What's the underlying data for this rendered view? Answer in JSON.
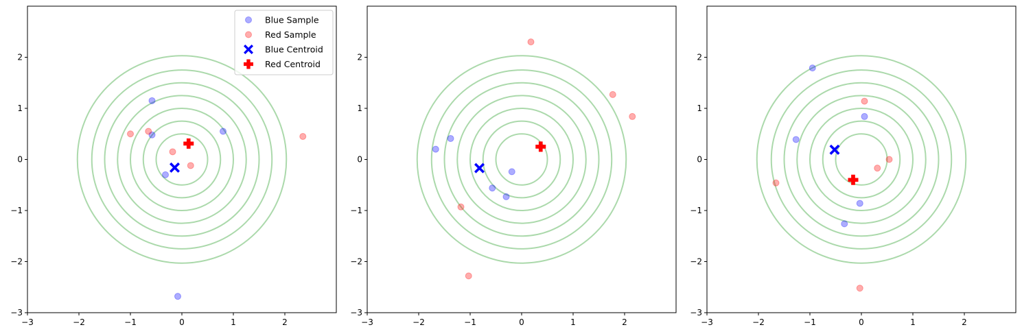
{
  "chart_data": [
    {
      "type": "scatter",
      "xlim": [
        -3,
        3
      ],
      "ylim": [
        -3,
        3
      ],
      "xticks": [
        -3,
        -2,
        -1,
        0,
        1,
        2
      ],
      "yticks": [
        -3,
        -2,
        -1,
        0,
        1,
        2
      ],
      "xtick_labels": [
        "−3",
        "−2",
        "−1",
        "0",
        "1",
        "2"
      ],
      "ytick_labels": [
        "−3",
        "−2",
        "−1",
        "0",
        "1",
        "2"
      ],
      "grid": false,
      "contour_radii": [
        0.5,
        0.75,
        1.0,
        1.25,
        1.5,
        1.75,
        2.03
      ],
      "legend": {
        "placement": "upper right",
        "entries": [
          "Blue Sample",
          "Red Sample",
          "Blue Centroid",
          "Red Centroid"
        ]
      },
      "series": [
        {
          "name": "Blue Sample",
          "kind": "sample",
          "color": "#0000ff",
          "points": [
            [
              -0.58,
              1.15
            ],
            [
              -0.58,
              0.48
            ],
            [
              0.8,
              0.55
            ],
            [
              -0.32,
              -0.3
            ],
            [
              -0.08,
              -2.68
            ]
          ]
        },
        {
          "name": "Red Sample",
          "kind": "sample",
          "color": "#ff0000",
          "points": [
            [
              -1.0,
              0.5
            ],
            [
              -0.65,
              0.55
            ],
            [
              -0.18,
              0.15
            ],
            [
              0.17,
              -0.12
            ],
            [
              2.35,
              0.45
            ]
          ]
        },
        {
          "name": "Blue Centroid",
          "kind": "centroid",
          "color": "#0000ff",
          "marker": "x",
          "points": [
            [
              -0.14,
              -0.16
            ]
          ]
        },
        {
          "name": "Red Centroid",
          "kind": "centroid",
          "color": "#ff0000",
          "marker": "plus",
          "points": [
            [
              0.13,
              0.31
            ]
          ]
        }
      ]
    },
    {
      "type": "scatter",
      "xlim": [
        -3,
        3
      ],
      "ylim": [
        -3,
        3
      ],
      "xticks": [
        -3,
        -2,
        -1,
        0,
        1,
        2
      ],
      "yticks": [
        -3,
        -2,
        -1,
        0,
        1,
        2
      ],
      "xtick_labels": [
        "−3",
        "−2",
        "−1",
        "0",
        "1",
        "2"
      ],
      "ytick_labels": [
        "−3",
        "−2",
        "−1",
        "0",
        "1",
        "2"
      ],
      "grid": false,
      "contour_radii": [
        0.5,
        0.75,
        1.0,
        1.25,
        1.5,
        1.75,
        2.03
      ],
      "series": [
        {
          "kind": "sample",
          "color": "#0000ff",
          "points": [
            [
              -1.67,
              0.2
            ],
            [
              -1.38,
              0.41
            ],
            [
              -0.19,
              -0.24
            ],
            [
              -0.57,
              -0.56
            ],
            [
              -0.3,
              -0.73
            ]
          ]
        },
        {
          "kind": "sample",
          "color": "#ff0000",
          "points": [
            [
              0.18,
              2.3
            ],
            [
              1.77,
              1.27
            ],
            [
              2.15,
              0.84
            ],
            [
              -1.18,
              -0.93
            ],
            [
              -1.03,
              -2.28
            ]
          ]
        },
        {
          "kind": "centroid",
          "color": "#0000ff",
          "marker": "x",
          "points": [
            [
              -0.82,
              -0.17
            ]
          ]
        },
        {
          "kind": "centroid",
          "color": "#ff0000",
          "marker": "plus",
          "points": [
            [
              0.37,
              0.25
            ]
          ]
        }
      ]
    },
    {
      "type": "scatter",
      "xlim": [
        -3,
        3
      ],
      "ylim": [
        -3,
        3
      ],
      "xticks": [
        -3,
        -2,
        -1,
        0,
        1,
        2
      ],
      "yticks": [
        -3,
        -2,
        -1,
        0,
        1,
        2
      ],
      "xtick_labels": [
        "−3",
        "−2",
        "−1",
        "0",
        "1",
        "2"
      ],
      "ytick_labels": [
        "−3",
        "−2",
        "−1",
        "0",
        "1",
        "2"
      ],
      "grid": false,
      "contour_radii": [
        0.5,
        0.75,
        1.0,
        1.25,
        1.5,
        1.75,
        2.03
      ],
      "series": [
        {
          "kind": "sample",
          "color": "#0000ff",
          "points": [
            [
              -0.95,
              1.79
            ],
            [
              -1.27,
              0.39
            ],
            [
              0.06,
              0.84
            ],
            [
              -0.03,
              -0.86
            ],
            [
              -0.33,
              -1.26
            ]
          ]
        },
        {
          "kind": "sample",
          "color": "#ff0000",
          "points": [
            [
              0.06,
              1.14
            ],
            [
              0.54,
              0.0
            ],
            [
              0.31,
              -0.17
            ],
            [
              -1.66,
              -0.46
            ],
            [
              -0.03,
              -2.52
            ]
          ]
        },
        {
          "kind": "centroid",
          "color": "#0000ff",
          "marker": "x",
          "points": [
            [
              -0.52,
              0.19
            ]
          ]
        },
        {
          "kind": "centroid",
          "color": "#ff0000",
          "marker": "plus",
          "points": [
            [
              -0.16,
              -0.4
            ]
          ]
        }
      ]
    }
  ]
}
